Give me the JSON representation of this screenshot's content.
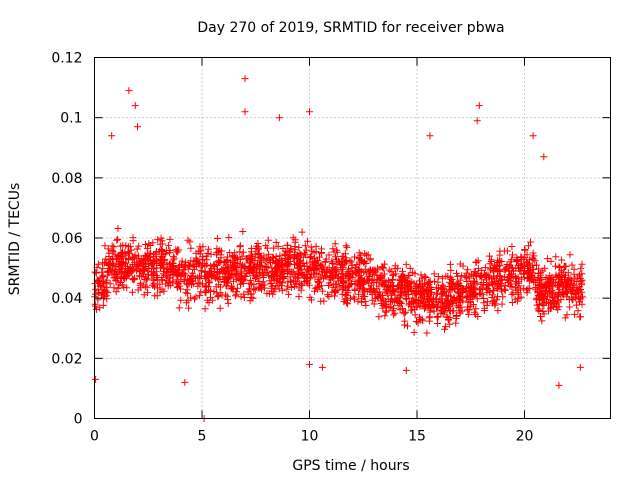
{
  "chart_data": {
    "type": "scatter",
    "title": "Day 270 of 2019, SRMTID for receiver pbwa",
    "xlabel": "GPS time / hours",
    "ylabel": "SRMTID / TECUs",
    "xlim": [
      0,
      24
    ],
    "ylim": [
      0,
      0.12
    ],
    "xticks": [
      0,
      5,
      10,
      15,
      20
    ],
    "yticks": [
      0,
      0.02,
      0.04,
      0.06,
      0.08,
      0.1,
      0.12
    ],
    "xtick_labels": [
      "0",
      "5",
      "10",
      "15",
      "20"
    ],
    "ytick_labels": [
      "0",
      "0.02",
      "0.04",
      "0.06",
      "0.08",
      "0.1",
      "0.12"
    ],
    "grid": true,
    "marker": "+",
    "color": "#ff0000",
    "series": [
      {
        "name": "pbwa",
        "x_range": [
          0.0,
          22.7
        ],
        "typical_y_range": [
          0.02,
          0.07
        ],
        "mean_y": 0.047,
        "notable_points": [
          {
            "x": 0.05,
            "y": 0.013
          },
          {
            "x": 0.8,
            "y": 0.094
          },
          {
            "x": 1.6,
            "y": 0.109
          },
          {
            "x": 1.9,
            "y": 0.104
          },
          {
            "x": 2.0,
            "y": 0.097
          },
          {
            "x": 4.2,
            "y": 0.012
          },
          {
            "x": 5.1,
            "y": 0.0
          },
          {
            "x": 7.0,
            "y": 0.113
          },
          {
            "x": 7.0,
            "y": 0.102
          },
          {
            "x": 8.6,
            "y": 0.1
          },
          {
            "x": 10.0,
            "y": 0.102
          },
          {
            "x": 10.0,
            "y": 0.018
          },
          {
            "x": 10.6,
            "y": 0.017
          },
          {
            "x": 14.5,
            "y": 0.016
          },
          {
            "x": 15.6,
            "y": 0.094
          },
          {
            "x": 17.9,
            "y": 0.104
          },
          {
            "x": 17.8,
            "y": 0.099
          },
          {
            "x": 20.4,
            "y": 0.094
          },
          {
            "x": 20.9,
            "y": 0.087
          },
          {
            "x": 21.6,
            "y": 0.011
          },
          {
            "x": 22.6,
            "y": 0.017
          }
        ]
      }
    ]
  }
}
